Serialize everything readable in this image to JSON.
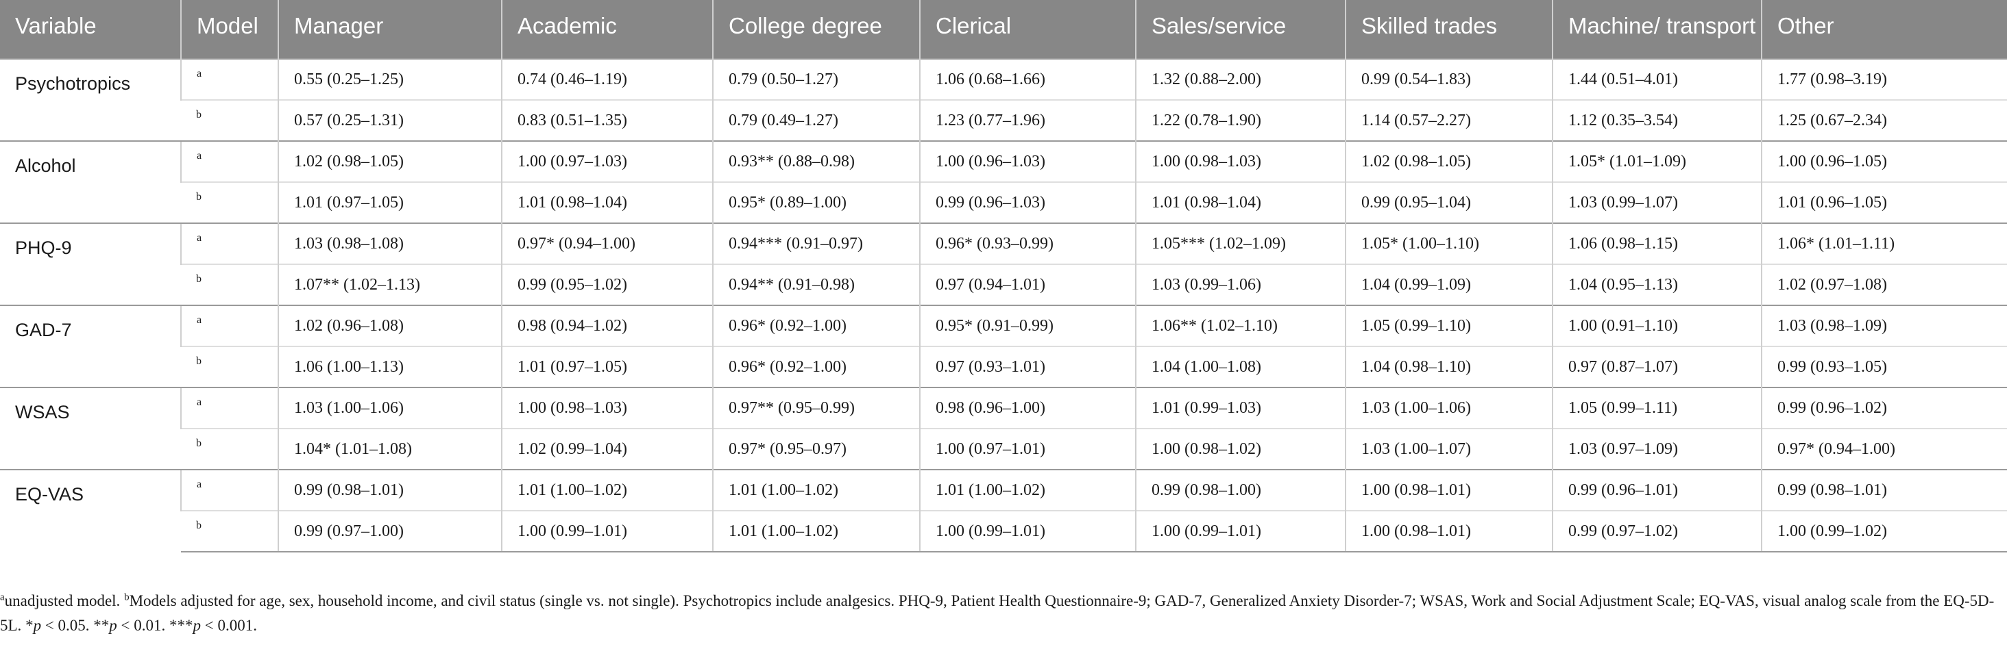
{
  "table": {
    "headers": [
      "Variable",
      "Model",
      "Manager",
      "Academic",
      "College degree",
      "Clerical",
      "Sales/service",
      "Skilled trades",
      "Machine/ transport",
      "Other"
    ],
    "rows": [
      {
        "variable": "Psychotropics",
        "a": [
          "0.55 (0.25–1.25)",
          "0.74 (0.46–1.19)",
          "0.79 (0.50–1.27)",
          "1.06 (0.68–1.66)",
          "1.32 (0.88–2.00)",
          "0.99 (0.54–1.83)",
          "1.44 (0.51–4.01)",
          "1.77 (0.98–3.19)"
        ],
        "b": [
          "0.57 (0.25–1.31)",
          "0.83 (0.51–1.35)",
          "0.79 (0.49–1.27)",
          "1.23 (0.77–1.96)",
          "1.22 (0.78–1.90)",
          "1.14 (0.57–2.27)",
          "1.12 (0.35–3.54)",
          "1.25 (0.67–2.34)"
        ]
      },
      {
        "variable": "Alcohol",
        "a": [
          "1.02 (0.98–1.05)",
          "1.00 (0.97–1.03)",
          "0.93** (0.88–0.98)",
          "1.00 (0.96–1.03)",
          "1.00 (0.98–1.03)",
          "1.02 (0.98–1.05)",
          "1.05* (1.01–1.09)",
          "1.00 (0.96–1.05)"
        ],
        "b": [
          "1.01 (0.97–1.05)",
          "1.01 (0.98–1.04)",
          "0.95* (0.89–1.00)",
          "0.99 (0.96–1.03)",
          "1.01 (0.98–1.04)",
          "0.99 (0.95–1.04)",
          "1.03 (0.99–1.07)",
          "1.01 (0.96–1.05)"
        ]
      },
      {
        "variable": "PHQ-9",
        "a": [
          "1.03 (0.98–1.08)",
          "0.97* (0.94–1.00)",
          "0.94*** (0.91–0.97)",
          "0.96* (0.93–0.99)",
          "1.05*** (1.02–1.09)",
          "1.05* (1.00–1.10)",
          "1.06 (0.98–1.15)",
          "1.06* (1.01–1.11)"
        ],
        "b": [
          "1.07** (1.02–1.13)",
          "0.99 (0.95–1.02)",
          "0.94** (0.91–0.98)",
          "0.97 (0.94–1.01)",
          "1.03 (0.99–1.06)",
          "1.04 (0.99–1.09)",
          "1.04 (0.95–1.13)",
          "1.02 (0.97–1.08)"
        ]
      },
      {
        "variable": "GAD-7",
        "a": [
          "1.02 (0.96–1.08)",
          "0.98 (0.94–1.02)",
          "0.96* (0.92–1.00)",
          "0.95* (0.91–0.99)",
          "1.06** (1.02–1.10)",
          "1.05 (0.99–1.10)",
          "1.00 (0.91–1.10)",
          "1.03 (0.98–1.09)"
        ],
        "b": [
          "1.06 (1.00–1.13)",
          "1.01 (0.97–1.05)",
          "0.96* (0.92–1.00)",
          "0.97 (0.93–1.01)",
          "1.04 (1.00–1.08)",
          "1.04 (0.98–1.10)",
          "0.97 (0.87–1.07)",
          "0.99 (0.93–1.05)"
        ]
      },
      {
        "variable": "WSAS",
        "a": [
          "1.03 (1.00–1.06)",
          "1.00 (0.98–1.03)",
          "0.97** (0.95–0.99)",
          "0.98 (0.96–1.00)",
          "1.01 (0.99–1.03)",
          "1.03 (1.00–1.06)",
          "1.05 (0.99–1.11)",
          "0.99 (0.96–1.02)"
        ],
        "b": [
          "1.04* (1.01–1.08)",
          "1.02 (0.99–1.04)",
          "0.97* (0.95–0.97)",
          "1.00 (0.97–1.01)",
          "1.00 (0.98–1.02)",
          "1.03 (1.00–1.07)",
          "1.03 (0.97–1.09)",
          "0.97* (0.94–1.00)"
        ]
      },
      {
        "variable": "EQ-VAS",
        "a": [
          "0.99 (0.98–1.01)",
          "1.01 (1.00–1.02)",
          "1.01 (1.00–1.02)",
          "1.01 (1.00–1.02)",
          "0.99 (0.98–1.00)",
          "1.00 (0.98–1.01)",
          "0.99 (0.96–1.01)",
          "0.99 (0.98–1.01)"
        ],
        "b": [
          "0.99 (0.97–1.00)",
          "1.00 (0.99–1.01)",
          "1.01 (1.00–1.02)",
          "1.00 (0.99–1.01)",
          "1.00 (0.99–1.01)",
          "1.00 (0.98–1.01)",
          "0.99 (0.97–1.02)",
          "1.00 (0.99–1.02)"
        ]
      }
    ],
    "model_a": "a",
    "model_b": "b"
  },
  "footnote": {
    "sup_a": "a",
    "note_a": "unadjusted model.",
    "sup_b": "b",
    "note_b": "Models adjusted for age, sex, household income, and civil status (single vs. not single). Psychotropics include analgesics. PHQ-9, Patient Health Questionnaire-9; GAD-7, Generalized Anxiety Disorder-7; WSAS, Work and Social Adjustment Scale; EQ-VAS, visual analog scale from the EQ-5D-5L.",
    "sig1_p": "p",
    "sig1_rest": " < 0.05.",
    "sig2_p": "p",
    "sig2_rest": " < 0.01.",
    "sig3_p": "p",
    "sig3_rest": " < 0.001."
  }
}
